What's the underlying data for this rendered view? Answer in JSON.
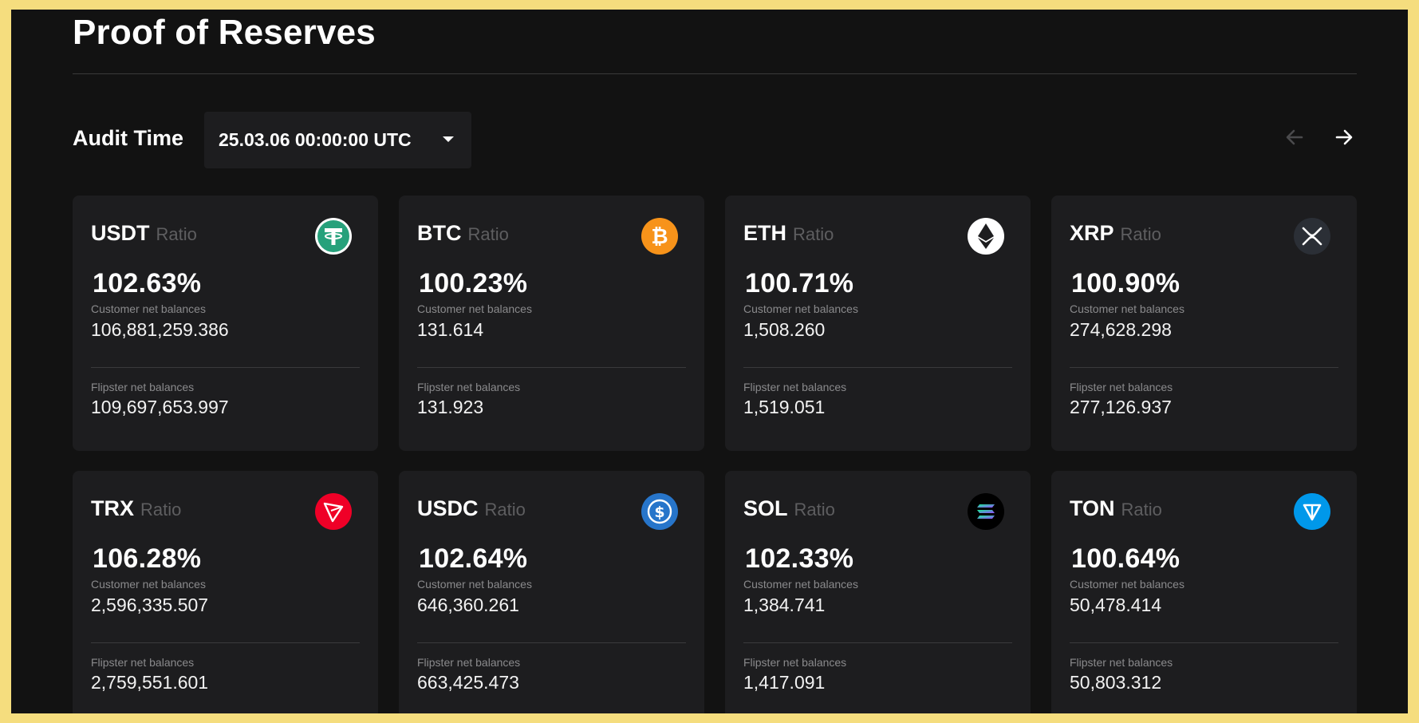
{
  "page": {
    "title": "Proof of Reserves",
    "audit_label": "Audit Time",
    "audit_value": "25.03.06 00:00:00 UTC"
  },
  "labels": {
    "ratio": "Ratio",
    "customer": "Customer net balances",
    "flipster": "Flipster net balances"
  },
  "colors": {
    "background": "#121212",
    "card": "#1d1d1f",
    "frame": "#f5dd7e"
  },
  "cards": [
    {
      "coin": "USDT",
      "ratio": "102.63%",
      "customer": "106,881,259.386",
      "flipster": "109,697,653.997",
      "icon": "tether-icon"
    },
    {
      "coin": "BTC",
      "ratio": "100.23%",
      "customer": "131.614",
      "flipster": "131.923",
      "icon": "bitcoin-icon"
    },
    {
      "coin": "ETH",
      "ratio": "100.71%",
      "customer": "1,508.260",
      "flipster": "1,519.051",
      "icon": "ethereum-icon"
    },
    {
      "coin": "XRP",
      "ratio": "100.90%",
      "customer": "274,628.298",
      "flipster": "277,126.937",
      "icon": "xrp-icon"
    },
    {
      "coin": "TRX",
      "ratio": "106.28%",
      "customer": "2,596,335.507",
      "flipster": "2,759,551.601",
      "icon": "tron-icon"
    },
    {
      "coin": "USDC",
      "ratio": "102.64%",
      "customer": "646,360.261",
      "flipster": "663,425.473",
      "icon": "usdc-icon"
    },
    {
      "coin": "SOL",
      "ratio": "102.33%",
      "customer": "1,384.741",
      "flipster": "1,417.091",
      "icon": "solana-icon"
    },
    {
      "coin": "TON",
      "ratio": "100.64%",
      "customer": "50,478.414",
      "flipster": "50,803.312",
      "icon": "ton-icon"
    }
  ]
}
